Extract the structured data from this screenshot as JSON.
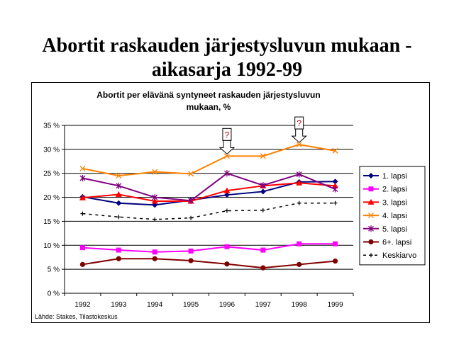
{
  "slide": {
    "title_line1": "Abortit raskauden järjestysluvun mukaan -",
    "title_line2": "aikasarja 1992-99"
  },
  "chart_data": {
    "type": "line",
    "title_line1": "Abortit per elävänä syntyneet raskauden järjestysluvun",
    "title_line2": "mukaan, %",
    "source": "Lähde: Stakes, Tilastokeskus",
    "x": [
      "1992",
      "1993",
      "1994",
      "1995",
      "1996",
      "1997",
      "1998",
      "1999"
    ],
    "y_ticks": [
      "0 %",
      "5 %",
      "10 %",
      "15 %",
      "20 %",
      "25 %",
      "30 %",
      "35 %"
    ],
    "ylim": [
      0,
      35
    ],
    "grid": true,
    "legend_position": "right",
    "series": [
      {
        "name": "1. lapsi",
        "color": "#000080",
        "marker": "diamond",
        "dash": false,
        "values": [
          20.1,
          18.8,
          18.4,
          19.4,
          20.5,
          21.2,
          23.2,
          23.3
        ]
      },
      {
        "name": "2. lapsi",
        "color": "#ff00ff",
        "marker": "square",
        "dash": false,
        "values": [
          9.5,
          9.0,
          8.6,
          8.8,
          9.7,
          9.0,
          10.3,
          10.3
        ]
      },
      {
        "name": "3. lapsi",
        "color": "#ff0000",
        "marker": "triangle",
        "dash": false,
        "values": [
          19.9,
          20.6,
          19.2,
          19.2,
          21.4,
          22.4,
          23.0,
          22.4
        ]
      },
      {
        "name": "4. lapsi",
        "color": "#ff8000",
        "marker": "x",
        "dash": false,
        "values": [
          26.0,
          24.5,
          25.3,
          24.9,
          28.6,
          28.6,
          31.0,
          29.7
        ]
      },
      {
        "name": "5. lapsi",
        "color": "#800080",
        "marker": "star",
        "dash": false,
        "values": [
          24.0,
          22.4,
          20.0,
          19.3,
          25.0,
          22.5,
          24.8,
          21.7
        ]
      },
      {
        "name": "6+. lapsi",
        "color": "#800000",
        "marker": "circle",
        "dash": false,
        "values": [
          6.0,
          7.2,
          7.2,
          6.8,
          6.1,
          5.3,
          6.0,
          6.7
        ]
      },
      {
        "name": "Keskiarvo",
        "color": "#000000",
        "marker": "plus",
        "dash": true,
        "values": [
          16.6,
          15.9,
          15.4,
          15.7,
          17.2,
          17.3,
          18.8,
          18.8
        ]
      }
    ],
    "annotations": [
      {
        "text": "?",
        "x": "1996"
      },
      {
        "text": "?",
        "x": "1998"
      }
    ]
  }
}
